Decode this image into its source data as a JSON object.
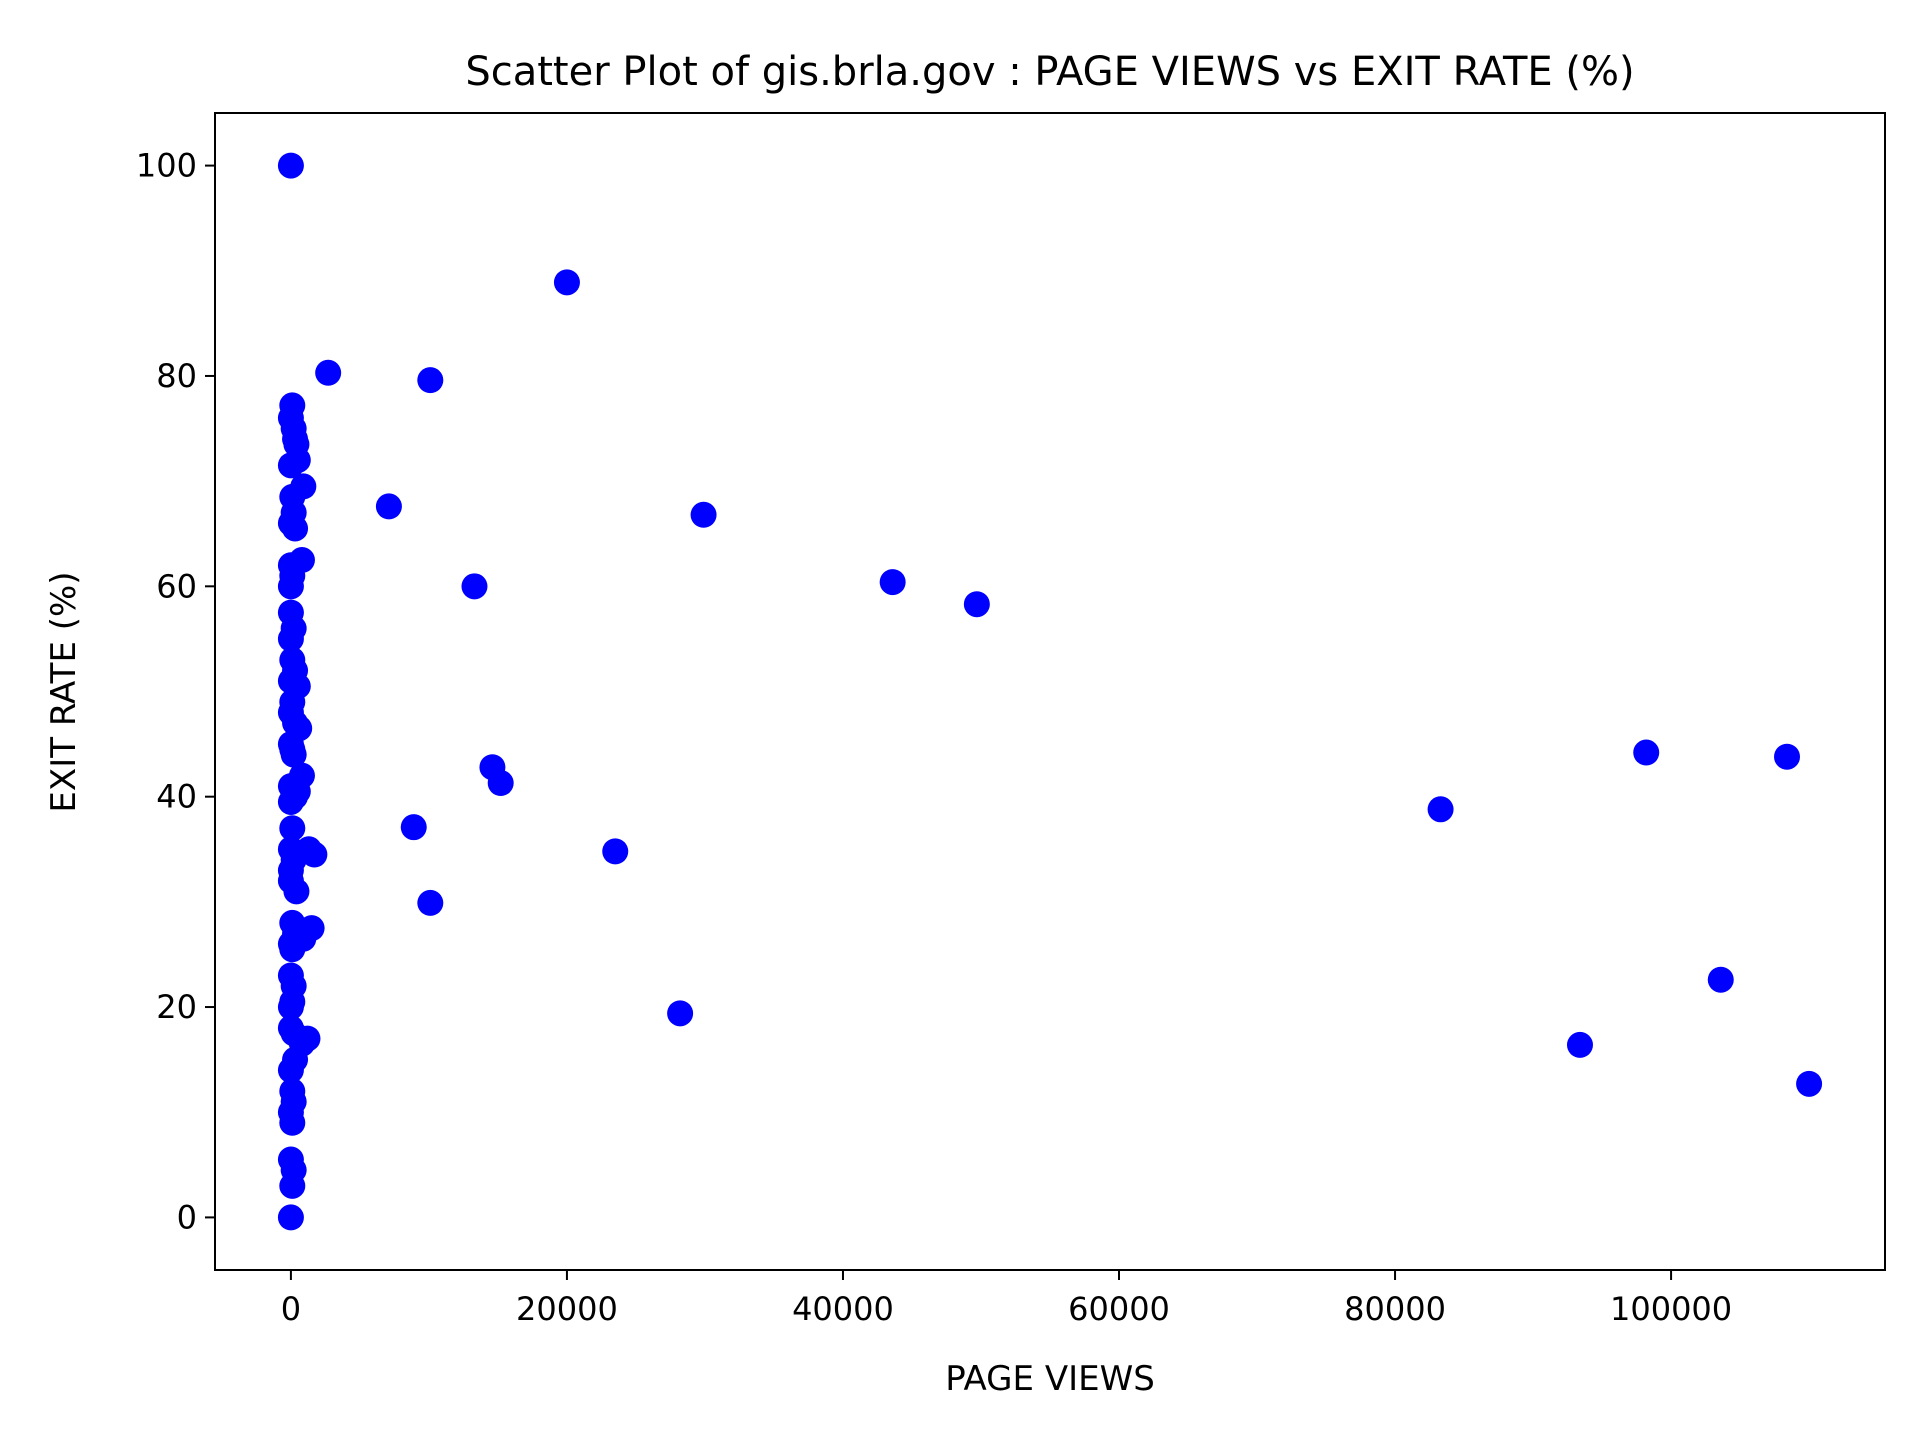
{
  "chart_data": {
    "type": "scatter",
    "title": "Scatter Plot of gis.brla.gov : PAGE VIEWS vs EXIT RATE (%)",
    "xlabel": "PAGE VIEWS",
    "ylabel": "EXIT RATE (%)",
    "xlim": [
      -5500,
      115500
    ],
    "ylim": [
      -5,
      105
    ],
    "xticks": [
      0,
      20000,
      40000,
      60000,
      80000,
      100000
    ],
    "yticks": [
      0,
      20,
      40,
      60,
      80,
      100
    ],
    "grid": false,
    "legend": "none",
    "marker_color": "#0000ff",
    "series": [
      {
        "x": [
          0,
          0,
          100,
          200,
          300,
          400,
          500,
          0,
          100,
          900,
          0,
          200,
          300,
          0,
          800,
          0,
          100,
          0,
          200,
          0,
          100,
          300,
          500,
          0,
          100,
          0,
          300,
          600,
          0,
          100,
          200,
          800,
          0,
          500,
          300,
          0,
          100,
          1300,
          1700,
          0,
          200,
          0,
          400,
          0,
          100,
          1500,
          900,
          0,
          100,
          300,
          0,
          200,
          1200,
          800,
          0,
          100,
          0,
          200,
          300,
          0,
          100,
          200,
          0,
          100,
          0,
          200,
          100,
          0,
          2700,
          10100,
          7100,
          13300,
          14600,
          15200,
          8900,
          10100,
          20000,
          23500,
          29900,
          28200,
          43600,
          49700,
          83300,
          93400,
          98200,
          103600,
          108400,
          110000
        ],
        "y": [
          100,
          76,
          77.2,
          75,
          74,
          73.5,
          72,
          71.5,
          68.5,
          69.5,
          66,
          67,
          65.5,
          62,
          62.5,
          60,
          61,
          57.5,
          56,
          55,
          53,
          52,
          50.5,
          51,
          49,
          48,
          47,
          46.5,
          45,
          44.5,
          44,
          42,
          41,
          40.5,
          40,
          39.5,
          37,
          35,
          34.5,
          35,
          34,
          33,
          31,
          32,
          28,
          27.5,
          26.5,
          26,
          25.5,
          27,
          23,
          22,
          17,
          16.5,
          20,
          20.5,
          18,
          17.5,
          15,
          14,
          12,
          11,
          10,
          9,
          5.5,
          4.5,
          3,
          0,
          80.3,
          79.6,
          67.6,
          60,
          42.8,
          41.3,
          37.1,
          29.9,
          88.9,
          34.8,
          66.8,
          19.4,
          60.4,
          58.3,
          38.8,
          16.4,
          44.2,
          22.6,
          43.8,
          12.7
        ]
      }
    ]
  }
}
